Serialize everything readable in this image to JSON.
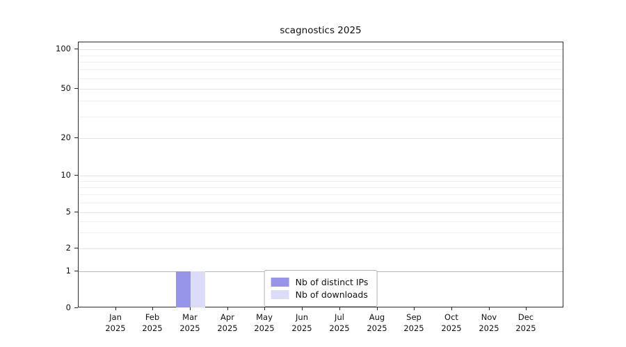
{
  "chart_data": {
    "type": "bar",
    "title": "scagnostics 2025",
    "categories": [
      "Jan",
      "Feb",
      "Mar",
      "Apr",
      "May",
      "Jun",
      "Jul",
      "Aug",
      "Sep",
      "Oct",
      "Nov",
      "Dec"
    ],
    "category_year": "2025",
    "series": [
      {
        "name": "Nb of distinct IPs",
        "color": "#9795ea",
        "values": [
          0,
          0,
          1,
          0,
          0,
          0,
          0,
          0,
          0,
          0,
          0,
          0
        ]
      },
      {
        "name": "Nb of downloads",
        "color": "#dcdcf9",
        "values": [
          0,
          0,
          1,
          0,
          0,
          0,
          0,
          0,
          0,
          0,
          0,
          0
        ]
      }
    ],
    "y_ticks": [
      0,
      1,
      2,
      5,
      10,
      20,
      50,
      100
    ],
    "y_minor_gridlines": [
      3,
      4,
      6,
      7,
      8,
      9,
      30,
      40,
      60,
      70,
      80,
      90
    ],
    "ylim": [
      0,
      100
    ],
    "y_scale": "log-like",
    "grid": "horizontal",
    "legend_position": "bottom-center-inside",
    "y_scale_anchors": [
      [
        0,
        1.0
      ],
      [
        1,
        0.8616
      ],
      [
        2,
        0.7755
      ],
      [
        5,
        0.6397
      ],
      [
        10,
        0.5013
      ],
      [
        20,
        0.3603
      ],
      [
        50,
        0.1749
      ],
      [
        100,
        0.0261
      ]
    ]
  }
}
